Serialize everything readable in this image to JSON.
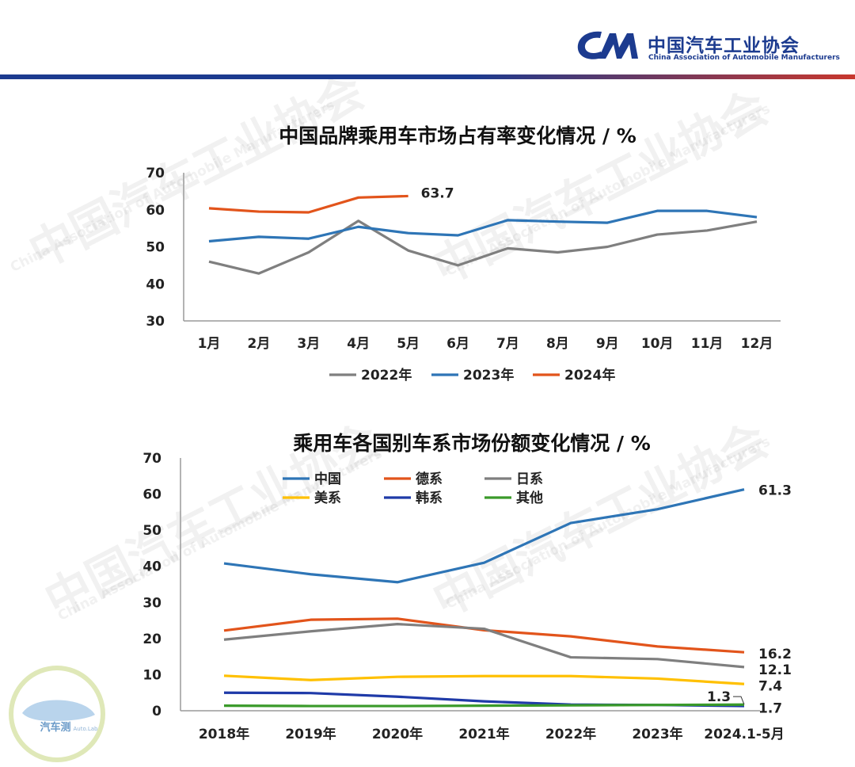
{
  "header": {
    "logo_cn": "中国汽车工业协会",
    "logo_en": "China Association of Automobile Manufacturers",
    "brand_colors": {
      "blue": "#1c3b8f",
      "red": "#c8372d"
    }
  },
  "watermark": {
    "cn": "中国汽车工业协会",
    "en": "China Association of Automobile Manufacturers"
  },
  "corner_badge": {
    "text": "汽车测",
    "sub": "Auto.Lab"
  },
  "chart_data": [
    {
      "type": "line",
      "title": "中国品牌乘用车市场占有率变化情况 / %",
      "categories": [
        "1月",
        "2月",
        "3月",
        "4月",
        "5月",
        "6月",
        "7月",
        "8月",
        "9月",
        "10月",
        "11月",
        "12月"
      ],
      "ylim": [
        30,
        70
      ],
      "yticks": [
        30,
        40,
        50,
        60,
        70
      ],
      "grid": false,
      "legend_position": "bottom",
      "series": [
        {
          "name": "2022年",
          "color": "#7f7f7f",
          "values": [
            46,
            42.8,
            48.5,
            57,
            49,
            45,
            49.6,
            48.5,
            50,
            53.3,
            54.4,
            56.8
          ]
        },
        {
          "name": "2023年",
          "color": "#2e75b6",
          "values": [
            51.5,
            52.7,
            52.2,
            55.4,
            53.7,
            53.1,
            57.2,
            56.8,
            56.5,
            59.7,
            59.7,
            58
          ]
        },
        {
          "name": "2024年",
          "color": "#e2541b",
          "values": [
            60.4,
            59.5,
            59.3,
            63.3,
            63.7,
            null,
            null,
            null,
            null,
            null,
            null,
            null
          ]
        }
      ],
      "annotations": [
        {
          "series": "2024年",
          "category": "5月",
          "text": "63.7"
        }
      ]
    },
    {
      "type": "line",
      "title": "乘用车各国别车系市场份额变化情况 / %",
      "categories": [
        "2018年",
        "2019年",
        "2020年",
        "2021年",
        "2022年",
        "2023年",
        "2024.1-5月"
      ],
      "ylim": [
        0,
        70
      ],
      "yticks": [
        0,
        10,
        20,
        30,
        40,
        50,
        60,
        70
      ],
      "grid": false,
      "legend_position": "top-left",
      "series": [
        {
          "name": "中国",
          "color": "#2e75b6",
          "values": [
            40.8,
            37.8,
            35.6,
            41,
            52,
            55.8,
            61.3
          ]
        },
        {
          "name": "德系",
          "color": "#e2541b",
          "values": [
            22.2,
            25.2,
            25.5,
            22.3,
            20.6,
            17.8,
            16.2
          ]
        },
        {
          "name": "日系",
          "color": "#7f7f7f",
          "values": [
            19.7,
            22,
            24,
            22.7,
            14.8,
            14.3,
            12.1
          ]
        },
        {
          "name": "美系",
          "color": "#ffc000",
          "values": [
            9.7,
            8.5,
            9.4,
            9.6,
            9.6,
            8.9,
            7.4
          ]
        },
        {
          "name": "韩系",
          "color": "#1f3aa8",
          "values": [
            5,
            4.9,
            3.9,
            2.6,
            1.7,
            1.6,
            1.3
          ]
        },
        {
          "name": "其他",
          "color": "#3a9a2a",
          "values": [
            1.4,
            1.3,
            1.3,
            1.4,
            1.5,
            1.6,
            1.7
          ]
        }
      ],
      "annotations": [
        {
          "series": "中国",
          "text": "61.3"
        },
        {
          "series": "德系",
          "text": "16.2"
        },
        {
          "series": "日系",
          "text": "12.1"
        },
        {
          "series": "美系",
          "text": "7.4"
        },
        {
          "series": "韩系",
          "text": "1.3"
        },
        {
          "series": "其他",
          "text": "1.7"
        }
      ]
    }
  ]
}
